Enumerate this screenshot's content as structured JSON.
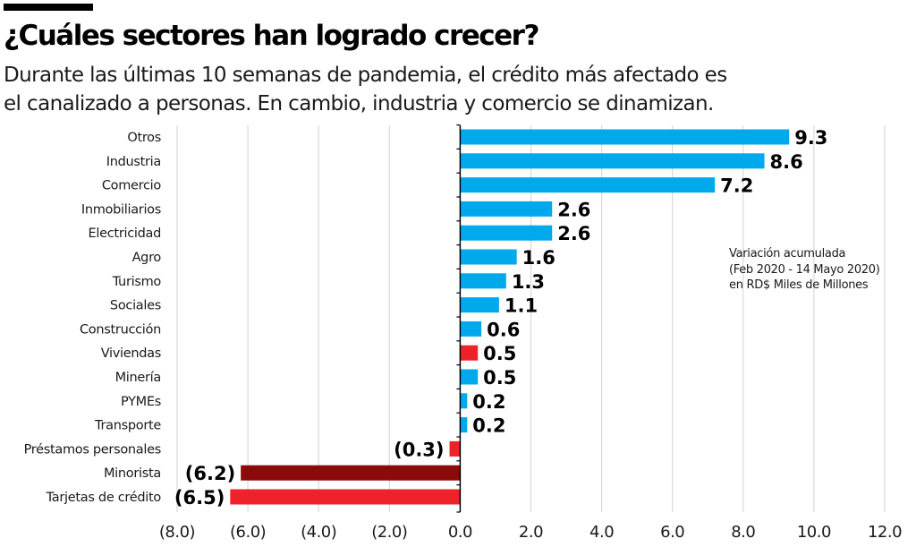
{
  "header": {
    "title": "¿Cuáles sectores han logrado crecer?",
    "subtitle_line1": "Durante las últimas 10 semanas de pandemia, el crédito más afectado es",
    "subtitle_line2": "el canalizado a personas. En cambio, industria y comercio se dinamizan."
  },
  "note": {
    "line1": "Variación acumulada",
    "line2": "(Feb 2020 - 14 Mayo 2020)",
    "line3": "en RD$ Miles de Millones"
  },
  "colors": {
    "positive": "#00a9ec",
    "negative": "#ee2229",
    "dark_negative": "#8b0a0a",
    "grid": "#d9d9d9",
    "axis": "#000000",
    "label": "#1a1a1a"
  },
  "chart_data": {
    "type": "bar",
    "orientation": "horizontal",
    "title": "¿Cuáles sectores han logrado crecer?",
    "xlabel": "",
    "ylabel": "",
    "xlim": [
      -8,
      12
    ],
    "grid": true,
    "categories": [
      "Otros",
      "Industria",
      "Comercio",
      "Inmobiliarios",
      "Electricidad",
      "Agro",
      "Turismo",
      "Sociales",
      "Construcción",
      "Viviendas",
      "Minería",
      "PYMEs",
      "Transporte",
      "Préstamos personales",
      "Minorista",
      "Tarjetas de crédito"
    ],
    "values": [
      9.3,
      8.6,
      7.2,
      2.6,
      2.6,
      1.6,
      1.3,
      1.1,
      0.6,
      0.5,
      0.5,
      0.2,
      0.2,
      -0.3,
      -6.2,
      -6.5
    ],
    "value_labels": [
      "9.3",
      "8.6",
      "7.2",
      "2.6",
      "2.6",
      "1.6",
      "1.3",
      "1.1",
      "0.6",
      "0.5",
      "0.5",
      "0.2",
      "0.2",
      "(0.3)",
      "(6.2)",
      "(6.5)"
    ],
    "bar_colors": [
      "positive",
      "positive",
      "positive",
      "positive",
      "positive",
      "positive",
      "positive",
      "positive",
      "positive",
      "negative",
      "positive",
      "positive",
      "positive",
      "negative",
      "dark_negative",
      "negative"
    ],
    "x_ticks": [
      -8,
      -6,
      -4,
      -2,
      0,
      2,
      4,
      6,
      8,
      10,
      12
    ],
    "x_tick_labels": [
      "(8.0)",
      "(6.0)",
      "(4.0)",
      "(2.0)",
      "0.0",
      "2.0",
      "4.0",
      "6.0",
      "8.0",
      "10.0",
      "12.0"
    ]
  }
}
